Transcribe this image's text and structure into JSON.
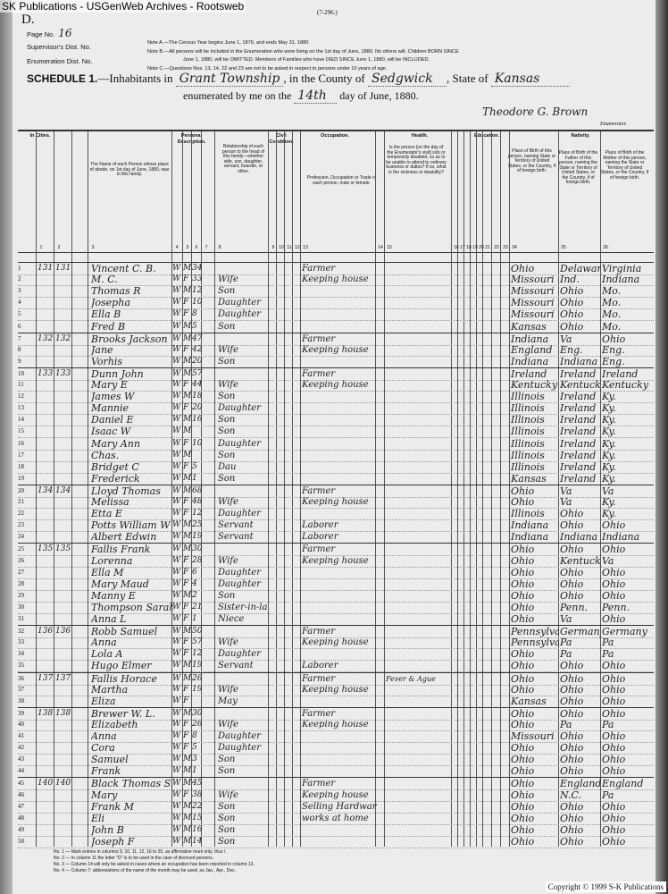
{
  "watermark": "SK Publications - USGenWeb Archives - Rootsweb",
  "form_id": "(7-296.)",
  "sheet_letter": "D.",
  "page_no_label": "Page No.",
  "page_no": "16",
  "supervisor_label": "Supervisor's Dist. No.",
  "enumeration_label": "Enumeration Dist. No.",
  "notes": [
    "Note A.—The Census Year begins June 1, 1879, and ends May 31, 1880.",
    "Note B.—All persons will be included in the Enumeration who were living on the 1st day of June, 1880. No others will. Children BORN SINCE",
    "June 1, 1880, will be OMITTED. Members of Families who have DIED SINCE June 1, 1880, will be INCLUDED.",
    "Note C.—Questions Nos. 13, 14, 22 and 23 are not to be asked in respect to persons under 10 years of age."
  ],
  "schedule": {
    "title": "SCHEDULE 1.",
    "inhabitants_in": "—Inhabitants in",
    "township": "Grant Township",
    "county_label": ", in the County of",
    "county": "Sedgwick",
    "state_label": ", State of",
    "state": "Kansas",
    "enumerated_label": "enumerated by me on the",
    "day": "14th",
    "month_year": "day of June, 1880.",
    "enumerator_signature": "Theodore G. Brown",
    "enumerator_label": "Enumerator."
  },
  "column_groups": [
    "In Cities.",
    "Personal Description.",
    "Civil Condition.",
    "Occupation.",
    "Health.",
    "Education.",
    "Nativity."
  ],
  "column_headers": {
    "name": "The Name of each Person whose place of abode, on 1st day of June, 1880, was in this family.",
    "relationship": "Relationship of each person to the head of this family—whether wife, son, daughter, servant, boarder, or other.",
    "occupation": "Profession, Occupation or Trade of each person, male or female.",
    "health": "Is the person [on the day of the Enumerator's visit] sick or temporarily disabled, so as to be unable to attend to ordinary business or duties? If so, what is the sickness or disability?",
    "birthplace": "Place of Birth of this person, naming State or Territory of United States, or the Country, if of foreign birth.",
    "father_birthplace": "Place of Birth of the Father of this person, naming the State or Territory of United States, or the Country, if of foreign birth.",
    "mother_birthplace": "Place of Birth of the Mother of this person, naming the State or Territory of United States, or the Country, if of foreign birth."
  },
  "column_numbers": [
    "1",
    "2",
    "3",
    "4",
    "5",
    "6",
    "7",
    "8",
    "9",
    "10",
    "11",
    "12",
    "13",
    "14",
    "15",
    "16",
    "17",
    "18",
    "19",
    "20",
    "21",
    "22",
    "23",
    "24",
    "25",
    "26"
  ],
  "rows": [
    {
      "line": "1",
      "dwelling": "131",
      "family": "131",
      "name": "Vincent C. B.",
      "color": "W",
      "sex": "M",
      "age": "34",
      "relation": "",
      "occupation": "Farmer",
      "birth": "Ohio",
      "father": "Delaware",
      "mother": "Virginia"
    },
    {
      "line": "2",
      "dwelling": "",
      "family": "",
      "name": "M. C.",
      "color": "W",
      "sex": "F",
      "age": "33",
      "relation": "Wife",
      "occupation": "Keeping house",
      "birth": "Missouri",
      "father": "Ind.",
      "mother": "Indiana"
    },
    {
      "line": "3",
      "dwelling": "",
      "family": "",
      "name": "Thomas R",
      "color": "W",
      "sex": "M",
      "age": "12",
      "relation": "Son",
      "occupation": "",
      "birth": "Missouri",
      "father": "Ohio",
      "mother": "Mo."
    },
    {
      "line": "4",
      "dwelling": "",
      "family": "",
      "name": "Josepha",
      "color": "W",
      "sex": "F",
      "age": "10",
      "relation": "Daughter",
      "occupation": "",
      "birth": "Missouri",
      "father": "Ohio",
      "mother": "Mo."
    },
    {
      "line": "5",
      "dwelling": "",
      "family": "",
      "name": "Ella B",
      "color": "W",
      "sex": "F",
      "age": "8",
      "relation": "Daughter",
      "occupation": "",
      "birth": "Missouri",
      "father": "Ohio",
      "mother": "Mo."
    },
    {
      "line": "6",
      "dwelling": "",
      "family": "",
      "name": "Fred B",
      "color": "W",
      "sex": "M",
      "age": "5",
      "relation": "Son",
      "occupation": "",
      "birth": "Kansas",
      "father": "Ohio",
      "mother": "Mo."
    },
    {
      "line": "7",
      "dwelling": "132",
      "family": "132",
      "name": "Brooks Jackson",
      "color": "W",
      "sex": "M",
      "age": "47",
      "relation": "",
      "occupation": "Farmer",
      "birth": "Indiana",
      "father": "Va",
      "mother": "Ohio"
    },
    {
      "line": "8",
      "dwelling": "",
      "family": "",
      "name": "Jane",
      "color": "W",
      "sex": "F",
      "age": "42",
      "relation": "Wife",
      "occupation": "Keeping house",
      "birth": "England",
      "father": "Eng.",
      "mother": "Eng."
    },
    {
      "line": "9",
      "dwelling": "",
      "family": "",
      "name": "Vorhis",
      "color": "W",
      "sex": "M",
      "age": "20",
      "relation": "Son",
      "occupation": "",
      "birth": "Indiana",
      "father": "Indiana",
      "mother": "Eng."
    },
    {
      "line": "10",
      "dwelling": "133",
      "family": "133",
      "name": "Dunn John",
      "color": "W",
      "sex": "M",
      "age": "57",
      "relation": "",
      "occupation": "Farmer",
      "birth": "Ireland",
      "father": "Ireland",
      "mother": "Ireland"
    },
    {
      "line": "11",
      "dwelling": "",
      "family": "",
      "name": "Mary E",
      "color": "W",
      "sex": "F",
      "age": "44",
      "relation": "Wife",
      "occupation": "Keeping house",
      "birth": "Kentucky",
      "father": "Kentucky",
      "mother": "Kentucky"
    },
    {
      "line": "12",
      "dwelling": "",
      "family": "",
      "name": "James W",
      "color": "W",
      "sex": "M",
      "age": "18",
      "relation": "Son",
      "occupation": "",
      "birth": "Illinois",
      "father": "Ireland",
      "mother": "Ky."
    },
    {
      "line": "13",
      "dwelling": "",
      "family": "",
      "name": "Mannie",
      "color": "W",
      "sex": "F",
      "age": "20",
      "relation": "Daughter",
      "occupation": "",
      "birth": "Illinois",
      "father": "Ireland",
      "mother": "Ky."
    },
    {
      "line": "14",
      "dwelling": "",
      "family": "",
      "name": "Daniel E",
      "color": "W",
      "sex": "M",
      "age": "16",
      "relation": "Son",
      "occupation": "",
      "birth": "Illinois",
      "father": "Ireland",
      "mother": "Ky."
    },
    {
      "line": "15",
      "dwelling": "",
      "family": "",
      "name": "Isaac W",
      "color": "W",
      "sex": "M",
      "age": "",
      "relation": "Son",
      "occupation": "",
      "birth": "Illinois",
      "father": "Ireland",
      "mother": "Ky."
    },
    {
      "line": "16",
      "dwelling": "",
      "family": "",
      "name": "Mary Ann",
      "color": "W",
      "sex": "F",
      "age": "10",
      "relation": "Daughter",
      "occupation": "",
      "birth": "Illinois",
      "father": "Ireland",
      "mother": "Ky."
    },
    {
      "line": "17",
      "dwelling": "",
      "family": "",
      "name": "Chas.",
      "color": "W",
      "sex": "M",
      "age": "",
      "relation": "Son",
      "occupation": "",
      "birth": "Illinois",
      "father": "Ireland",
      "mother": "Ky."
    },
    {
      "line": "18",
      "dwelling": "",
      "family": "",
      "name": "Bridget C",
      "color": "W",
      "sex": "F",
      "age": "5",
      "relation": "Dau",
      "occupation": "",
      "birth": "Illinois",
      "father": "Ireland",
      "mother": "Ky."
    },
    {
      "line": "19",
      "dwelling": "",
      "family": "",
      "name": "Frederick",
      "color": "W",
      "sex": "M",
      "age": "1",
      "relation": "Son",
      "occupation": "",
      "birth": "Kansas",
      "father": "Ireland",
      "mother": "Ky."
    },
    {
      "line": "20",
      "dwelling": "134",
      "family": "134",
      "name": "Lloyd Thomas",
      "color": "W",
      "sex": "M",
      "age": "68",
      "relation": "",
      "occupation": "Farmer",
      "birth": "Ohio",
      "father": "Va",
      "mother": "Va"
    },
    {
      "line": "21",
      "dwelling": "",
      "family": "",
      "name": "Melissa",
      "color": "W",
      "sex": "F",
      "age": "48",
      "relation": "Wife",
      "occupation": "Keeping house",
      "birth": "Ohio",
      "father": "Va",
      "mother": "Ky."
    },
    {
      "line": "22",
      "dwelling": "",
      "family": "",
      "name": "Etta E",
      "color": "W",
      "sex": "F",
      "age": "12",
      "relation": "Daughter",
      "occupation": "",
      "birth": "Illinois",
      "father": "Ohio",
      "mother": "Ky."
    },
    {
      "line": "23",
      "dwelling": "",
      "family": "",
      "name": "Potts William W",
      "color": "W",
      "sex": "M",
      "age": "25",
      "relation": "Servant",
      "occupation": "Laborer",
      "birth": "Indiana",
      "father": "Ohio",
      "mother": "Ohio"
    },
    {
      "line": "24",
      "dwelling": "",
      "family": "",
      "name": "Albert Edwin",
      "color": "W",
      "sex": "M",
      "age": "19",
      "relation": "Servant",
      "occupation": "Laborer",
      "birth": "Indiana",
      "father": "Indiana",
      "mother": "Indiana"
    },
    {
      "line": "25",
      "dwelling": "135",
      "family": "135",
      "name": "Fallis Frank",
      "color": "W",
      "sex": "M",
      "age": "30",
      "relation": "",
      "occupation": "Farmer",
      "birth": "Ohio",
      "father": "Ohio",
      "mother": "Ohio"
    },
    {
      "line": "26",
      "dwelling": "",
      "family": "",
      "name": "Lorenna",
      "color": "W",
      "sex": "F",
      "age": "28",
      "relation": "Wife",
      "occupation": "Keeping house",
      "birth": "Ohio",
      "father": "Kentucky",
      "mother": "Va"
    },
    {
      "line": "27",
      "dwelling": "",
      "family": "",
      "name": "Ella M",
      "color": "W",
      "sex": "F",
      "age": "6",
      "relation": "Daughter",
      "occupation": "",
      "birth": "Ohio",
      "father": "Ohio",
      "mother": "Ohio"
    },
    {
      "line": "28",
      "dwelling": "",
      "family": "",
      "name": "Mary Maud",
      "color": "W",
      "sex": "F",
      "age": "4",
      "relation": "Daughter",
      "occupation": "",
      "birth": "Ohio",
      "father": "Ohio",
      "mother": "Ohio"
    },
    {
      "line": "29",
      "dwelling": "",
      "family": "",
      "name": "Manny E",
      "color": "W",
      "sex": "M",
      "age": "2",
      "relation": "Son",
      "occupation": "",
      "birth": "Ohio",
      "father": "Ohio",
      "mother": "Ohio"
    },
    {
      "line": "30",
      "dwelling": "",
      "family": "",
      "name": "Thompson Sarah",
      "color": "W",
      "sex": "F",
      "age": "21",
      "relation": "Sister-in-law",
      "occupation": "",
      "birth": "Ohio",
      "father": "Penn.",
      "mother": "Penn."
    },
    {
      "line": "31",
      "dwelling": "",
      "family": "",
      "name": "Anna L",
      "color": "W",
      "sex": "F",
      "age": "1",
      "relation": "Niece",
      "occupation": "",
      "birth": "Ohio",
      "father": "Va",
      "mother": "Ohio"
    },
    {
      "line": "32",
      "dwelling": "136",
      "family": "136",
      "name": "Robb Samuel",
      "color": "W",
      "sex": "M",
      "age": "50",
      "relation": "",
      "occupation": "Farmer",
      "birth": "Pennsylvania",
      "father": "Germany",
      "mother": "Germany"
    },
    {
      "line": "33",
      "dwelling": "",
      "family": "",
      "name": "Anna",
      "color": "W",
      "sex": "F",
      "age": "57",
      "relation": "Wife",
      "occupation": "Keeping house",
      "birth": "Pennsylvania",
      "father": "Pa",
      "mother": "Pa"
    },
    {
      "line": "34",
      "dwelling": "",
      "family": "",
      "name": "Lola A",
      "color": "W",
      "sex": "F",
      "age": "12",
      "relation": "Daughter",
      "occupation": "",
      "birth": "Ohio",
      "father": "Pa",
      "mother": "Pa"
    },
    {
      "line": "35",
      "dwelling": "",
      "family": "",
      "name": "Hugo Elmer",
      "color": "W",
      "sex": "M",
      "age": "19",
      "relation": "Servant",
      "occupation": "Laborer",
      "birth": "Ohio",
      "father": "Ohio",
      "mother": "Ohio"
    },
    {
      "line": "36",
      "dwelling": "137",
      "family": "137",
      "name": "Fallis Horace",
      "color": "W",
      "sex": "M",
      "age": "26",
      "relation": "",
      "occupation": "Farmer",
      "birth": "Ohio",
      "father": "Ohio",
      "mother": "Ohio"
    },
    {
      "line": "37",
      "dwelling": "",
      "family": "",
      "name": "Martha",
      "color": "W",
      "sex": "F",
      "age": "19",
      "relation": "Wife",
      "occupation": "Keeping house",
      "birth": "Ohio",
      "father": "Ohio",
      "mother": "Ohio"
    },
    {
      "line": "38",
      "dwelling": "",
      "family": "",
      "name": "Eliza",
      "color": "W",
      "sex": "F",
      "age": "",
      "relation": "May",
      "occupation": "",
      "birth": "Kansas",
      "father": "Ohio",
      "mother": "Ohio"
    },
    {
      "line": "39",
      "dwelling": "138",
      "family": "138",
      "name": "Brewer W. L.",
      "color": "W",
      "sex": "M",
      "age": "30",
      "relation": "",
      "occupation": "Farmer",
      "birth": "Ohio",
      "father": "Ohio",
      "mother": "Ohio"
    },
    {
      "line": "40",
      "dwelling": "",
      "family": "",
      "name": "Elizabeth",
      "color": "W",
      "sex": "F",
      "age": "26",
      "relation": "Wife",
      "occupation": "Keeping house",
      "birth": "Ohio",
      "father": "Pa",
      "mother": "Pa"
    },
    {
      "line": "41",
      "dwelling": "",
      "family": "",
      "name": "Anna",
      "color": "W",
      "sex": "F",
      "age": "8",
      "relation": "Daughter",
      "occupation": "",
      "birth": "Missouri",
      "father": "Ohio",
      "mother": "Ohio"
    },
    {
      "line": "42",
      "dwelling": "",
      "family": "",
      "name": "Cora",
      "color": "W",
      "sex": "F",
      "age": "5",
      "relation": "Daughter",
      "occupation": "",
      "birth": "Ohio",
      "father": "Ohio",
      "mother": "Ohio"
    },
    {
      "line": "43",
      "dwelling": "",
      "family": "",
      "name": "Samuel",
      "color": "W",
      "sex": "M",
      "age": "3",
      "relation": "Son",
      "occupation": "",
      "birth": "Ohio",
      "father": "Ohio",
      "mother": "Ohio"
    },
    {
      "line": "44",
      "dwelling": "",
      "family": "",
      "name": "Frank",
      "color": "W",
      "sex": "M",
      "age": "1",
      "relation": "Son",
      "occupation": "",
      "birth": "Ohio",
      "father": "Ohio",
      "mother": "Ohio"
    },
    {
      "line": "45",
      "dwelling": "140",
      "family": "140",
      "name": "Black Thomas S.",
      "color": "W",
      "sex": "M",
      "age": "45",
      "relation": "",
      "occupation": "Farmer",
      "birth": "Ohio",
      "father": "England",
      "mother": "England"
    },
    {
      "line": "46",
      "dwelling": "",
      "family": "",
      "name": "Mary",
      "color": "W",
      "sex": "F",
      "age": "38",
      "relation": "Wife",
      "occupation": "Keeping house",
      "birth": "Ohio",
      "father": "N.C.",
      "mother": "Pa"
    },
    {
      "line": "47",
      "dwelling": "",
      "family": "",
      "name": "Frank M",
      "color": "W",
      "sex": "M",
      "age": "22",
      "relation": "Son",
      "occupation": "Selling Hardware",
      "birth": "Ohio",
      "father": "Ohio",
      "mother": "Ohio"
    },
    {
      "line": "48",
      "dwelling": "",
      "family": "",
      "name": "Eli",
      "color": "W",
      "sex": "M",
      "age": "15",
      "relation": "Son",
      "occupation": "works at home",
      "birth": "Ohio",
      "father": "Ohio",
      "mother": "Ohio"
    },
    {
      "line": "49",
      "dwelling": "",
      "family": "",
      "name": "John B",
      "color": "W",
      "sex": "M",
      "age": "16",
      "relation": "Son",
      "occupation": "",
      "birth": "Ohio",
      "father": "Ohio",
      "mother": "Ohio"
    },
    {
      "line": "50",
      "dwelling": "",
      "family": "",
      "name": "Joseph F",
      "color": "W",
      "sex": "M",
      "age": "14",
      "relation": "Son",
      "occupation": "",
      "birth": "Ohio",
      "father": "Ohio",
      "mother": "Ohio"
    }
  ],
  "health_note_row36": "Fever & Ague",
  "footnotes": [
    "No. 1 — Mark entries in columns 9, 10, 11, 12, 16 to 20, as affirmative mark only, thus /.",
    "No. 2 — In column 11 the letter \"D\" is to be used in the case of divorced persons.",
    "No. 3 — Column 14 will only be asked in cases where an occupation has been reported in column 13.",
    "No. 4 — Column 7: abbreviations of the name of the month may be used, as Jan., Apr., Dec."
  ],
  "copyright": "Copyright © 1999 S-K Publications"
}
